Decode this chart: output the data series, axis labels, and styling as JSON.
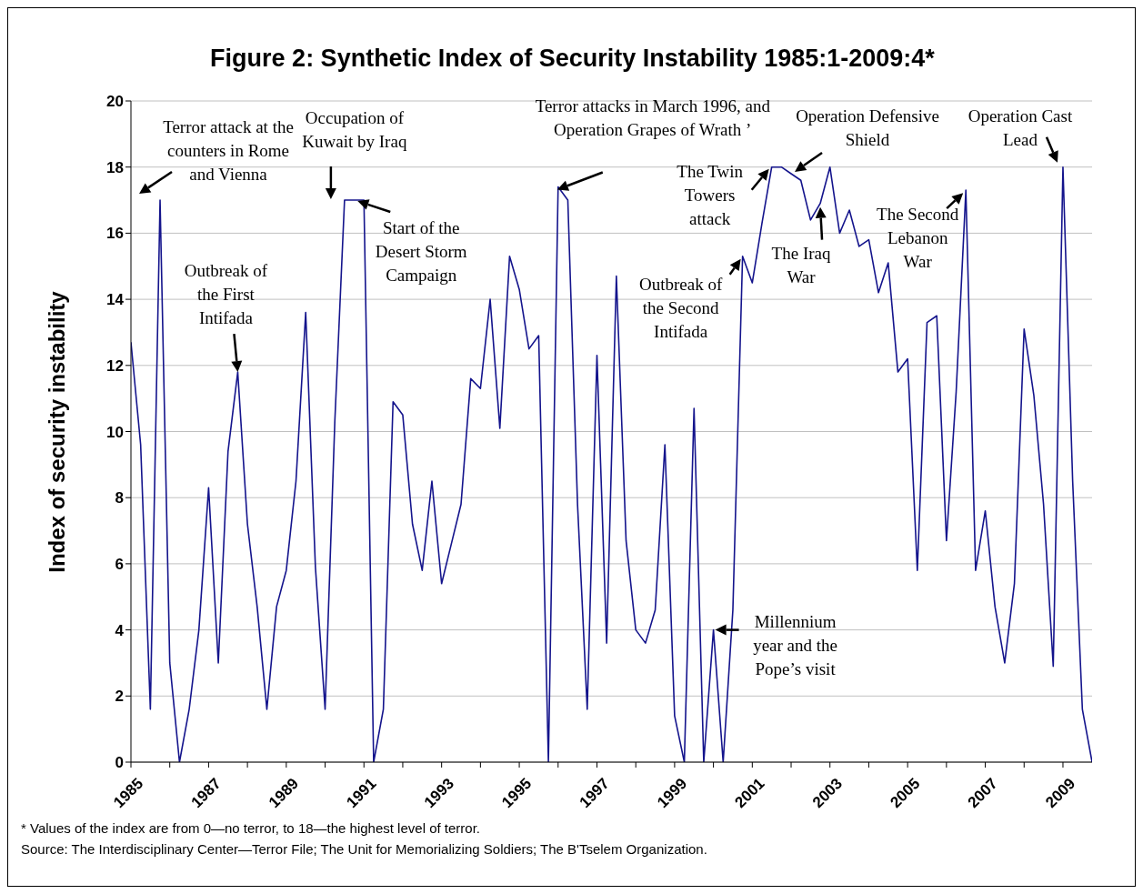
{
  "chart_data": {
    "type": "line",
    "title": "Figure 2: Synthetic Index of Security Instability 1985:1-2009:4*",
    "ylabel": "Index of security instability",
    "grid": "y",
    "marker": "none",
    "line_style": "solid",
    "x": [
      1985,
      1985.25,
      1985.5,
      1985.75,
      1986,
      1986.25,
      1986.5,
      1986.75,
      1987,
      1987.25,
      1987.5,
      1987.75,
      1988,
      1988.25,
      1988.5,
      1988.75,
      1989,
      1989.25,
      1989.5,
      1989.75,
      1990,
      1990.25,
      1990.5,
      1990.75,
      1991,
      1991.25,
      1991.5,
      1991.75,
      1992,
      1992.25,
      1992.5,
      1992.75,
      1993,
      1993.25,
      1993.5,
      1993.75,
      1994,
      1994.25,
      1994.5,
      1994.75,
      1995,
      1995.25,
      1995.5,
      1995.75,
      1996,
      1996.25,
      1996.5,
      1996.75,
      1997,
      1997.25,
      1997.5,
      1997.75,
      1998,
      1998.25,
      1998.5,
      1998.75,
      1999,
      1999.25,
      1999.5,
      1999.75,
      2000,
      2000.25,
      2000.5,
      2000.75,
      2001,
      2001.25,
      2001.5,
      2001.75,
      2002,
      2002.25,
      2002.5,
      2002.75,
      2003,
      2003.25,
      2003.5,
      2003.75,
      2004,
      2004.25,
      2004.5,
      2004.75,
      2005,
      2005.25,
      2005.5,
      2005.75,
      2006,
      2006.25,
      2006.5,
      2006.75,
      2007,
      2007.25,
      2007.5,
      2007.75,
      2008,
      2008.25,
      2008.5,
      2008.75,
      2009,
      2009.25,
      2009.5,
      2009.75
    ],
    "series": [
      {
        "color": "#14148c",
        "values": [
          12.7,
          9.6,
          1.6,
          17,
          3,
          0,
          1.6,
          4,
          8.3,
          3,
          9.4,
          11.8,
          7.2,
          4.7,
          1.6,
          4.7,
          5.8,
          8.5,
          13.6,
          5.9,
          1.6,
          10.3,
          17,
          17,
          17,
          0,
          1.6,
          10.9,
          10.5,
          7.2,
          5.8,
          8.5,
          5.4,
          6.6,
          7.8,
          11.6,
          11.3,
          14,
          10.1,
          15.3,
          14.3,
          12.5,
          12.9,
          0,
          17.4,
          17,
          7.8,
          1.6,
          12.3,
          3.6,
          14.7,
          6.7,
          4,
          3.6,
          4.6,
          9.6,
          1.4,
          0,
          10.7,
          0,
          4,
          0,
          4.6,
          15.3,
          14.5,
          16.3,
          18,
          18,
          17.8,
          17.6,
          16.4,
          16.9,
          18,
          16,
          16.7,
          15.6,
          15.8,
          14.2,
          15.1,
          11.8,
          12.2,
          5.8,
          13.3,
          13.5,
          6.7,
          11.2,
          17.3,
          5.8,
          7.6,
          4.7,
          3,
          5.4,
          13.1,
          11.1,
          7.8,
          2.9,
          18,
          8.5,
          1.6,
          0
        ]
      }
    ],
    "xlim": [
      1985,
      2009.75
    ],
    "xticks": [
      1985,
      {
        "value": 1986,
        "label": null
      },
      1987,
      {
        "value": 1988,
        "label": null
      },
      1989,
      {
        "value": 1990,
        "label": null
      },
      1991,
      {
        "value": 1992,
        "label": null
      },
      1993,
      {
        "value": 1994,
        "label": null
      },
      1995,
      {
        "value": 1996,
        "label": null
      },
      1997,
      {
        "value": 1998,
        "label": null
      },
      1999,
      {
        "value": 2000,
        "label": null
      },
      2001,
      {
        "value": 2002,
        "label": null
      },
      2003,
      {
        "value": 2004,
        "label": null
      },
      2005,
      {
        "value": 2006,
        "label": null
      },
      2007,
      {
        "value": 2008,
        "label": null
      },
      2009
    ],
    "ylim": [
      0,
      20
    ],
    "yticks": [
      0,
      2,
      4,
      6,
      8,
      10,
      12,
      14,
      16,
      18,
      20
    ],
    "annotations": [
      {
        "text": "Terror attack at the counters in Rome and Vienna",
        "x": 1985.75,
        "y": 17
      },
      {
        "text": "Occupation of Kuwait by Iraq",
        "x": 1990.5,
        "y": 17
      },
      {
        "text": "Start of the Desert Storm Campaign",
        "x": 1991,
        "y": 17
      },
      {
        "text": "Outbreak of the First Intifada",
        "x": 1987.75,
        "y": 11.8
      },
      {
        "text": "Terror attacks in March 1996, and Operation Grapes of Wrath ’",
        "x": 1996,
        "y": 17.4
      },
      {
        "text": "Outbreak of the Second Intifada",
        "x": 2000.75,
        "y": 15.3
      },
      {
        "text": "The Twin Towers attack",
        "x": 2001.5,
        "y": 18
      },
      {
        "text": "Operation Defensive Shield",
        "x": 2002,
        "y": 17.8
      },
      {
        "text": "The Iraq War",
        "x": 2002.75,
        "y": 16.9
      },
      {
        "text": "Millennium year and the Pope’s visit",
        "x": 2000,
        "y": 4
      },
      {
        "text": "The Second Lebanon War",
        "x": 2006.5,
        "y": 17.3
      },
      {
        "text": "Operation Cast Lead",
        "x": 2009,
        "y": 18
      },
      "* Values of the index are from 0—no terror, to 18—the highest level of terror.",
      "Source: The Interdisciplinary Center—Terror File; The Unit for Memorializing Soldiers; The B'Tselem Organization."
    ]
  }
}
